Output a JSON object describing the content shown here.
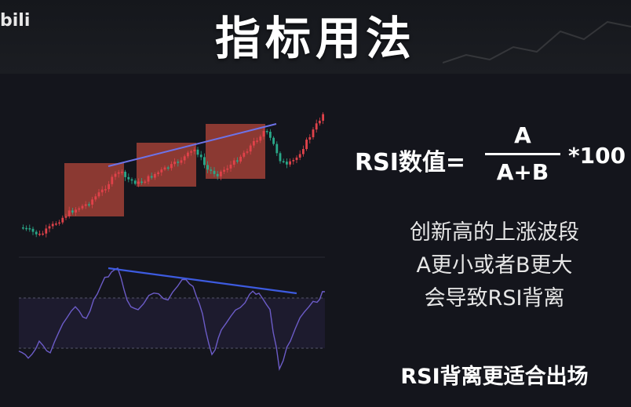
{
  "header": {
    "title": "指标用法",
    "watermark": "bili"
  },
  "formula": {
    "label": "RSI数值=",
    "numerator": "A",
    "denominator": "A+B",
    "multiplier": "*100"
  },
  "explanation": {
    "line1": "创新高的上涨波段",
    "line2": "A更小或者B更大",
    "line3": "会导致RSI背离"
  },
  "conclusion": "RSI背离更适合出场",
  "colors": {
    "up_candle": "#e0424a",
    "down_candle": "#2aa889",
    "box_fill": "#b3453a",
    "trend_line": "#6d73e8",
    "rsi_line": "#6c5cc8",
    "rsi_band": "#1d1b2e"
  }
}
